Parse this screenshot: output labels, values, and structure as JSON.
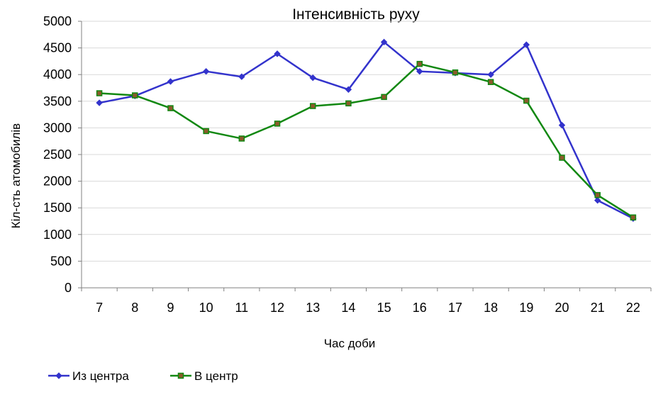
{
  "chart_data": {
    "type": "line",
    "title": "Інтенсивність руху",
    "xlabel": "Час доби",
    "ylabel": "Кіл-сть атомобилів",
    "categories": [
      "7",
      "8",
      "9",
      "10",
      "11",
      "12",
      "13",
      "14",
      "15",
      "16",
      "17",
      "18",
      "19",
      "20",
      "21",
      "22"
    ],
    "ylim": [
      0,
      5000
    ],
    "yticks": [
      "0",
      "500",
      "1000",
      "1500",
      "2000",
      "2500",
      "3000",
      "3500",
      "4000",
      "4500",
      "5000"
    ],
    "grid": true,
    "legend_position": "bottom-left",
    "series": [
      {
        "name": "Из центра",
        "color": "#3333cc",
        "marker": "diamond",
        "values": [
          3470,
          3600,
          3870,
          4060,
          3960,
          4390,
          3940,
          3720,
          4610,
          4060,
          4030,
          4000,
          4560,
          3050,
          1640,
          1300
        ]
      },
      {
        "name": "В центр",
        "color": "#118811",
        "marker": "square",
        "marker_fill": "#8b5a2b",
        "values": [
          3650,
          3610,
          3370,
          2940,
          2800,
          3080,
          3410,
          3460,
          3580,
          4200,
          4040,
          3860,
          3510,
          2440,
          1740,
          1320
        ]
      }
    ]
  }
}
